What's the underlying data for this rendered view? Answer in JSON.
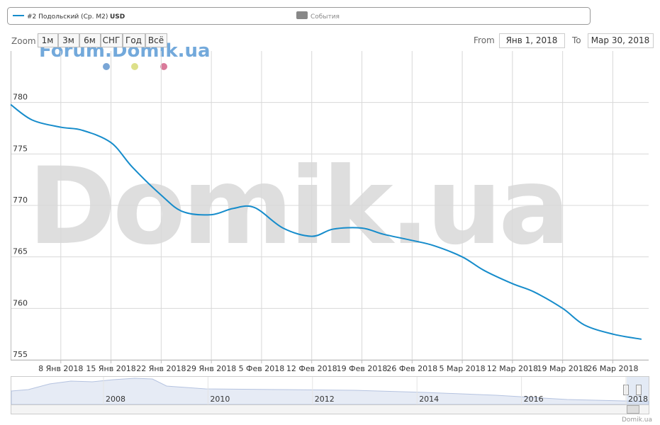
{
  "chart_data": {
    "type": "line",
    "x": [
      "2018-01-01",
      "2018-01-04",
      "2018-01-08",
      "2018-01-11",
      "2018-01-15",
      "2018-01-18",
      "2018-01-22",
      "2018-01-25",
      "2018-01-29",
      "2018-02-01",
      "2018-02-04",
      "2018-02-08",
      "2018-02-12",
      "2018-02-15",
      "2018-02-19",
      "2018-02-22",
      "2018-02-26",
      "2018-03-01",
      "2018-03-05",
      "2018-03-08",
      "2018-03-12",
      "2018-03-15",
      "2018-03-19",
      "2018-03-22",
      "2018-03-26",
      "2018-03-30"
    ],
    "series": [
      {
        "name": "#2 Подольский (Ср. M2)",
        "color": "#168ccb",
        "values": [
          779.8,
          778.3,
          777.6,
          777.3,
          776.1,
          773.7,
          771.0,
          769.4,
          769.1,
          769.7,
          769.8,
          767.8,
          767.0,
          767.7,
          767.8,
          767.2,
          766.6,
          766.1,
          765.0,
          763.7,
          762.4,
          761.6,
          760.0,
          758.4,
          757.5,
          757.0
        ]
      }
    ],
    "currency": "USD",
    "xlim": [
      "2018-01-01",
      "2018-03-31"
    ],
    "xticks": [
      {
        "value": "2018-01-08",
        "label": "8 Янв 2018"
      },
      {
        "value": "2018-01-15",
        "label": "15 Янв 2018"
      },
      {
        "value": "2018-01-22",
        "label": "22 Янв 2018"
      },
      {
        "value": "2018-01-29",
        "label": "29 Янв 2018"
      },
      {
        "value": "2018-02-05",
        "label": "5 Фев 2018"
      },
      {
        "value": "2018-02-12",
        "label": "12 Фев 2018"
      },
      {
        "value": "2018-02-19",
        "label": "19 Фев 2018"
      },
      {
        "value": "2018-02-26",
        "label": "26 Фев 2018"
      },
      {
        "value": "2018-03-05",
        "label": "5 Мар 2018"
      },
      {
        "value": "2018-03-12",
        "label": "12 Мар 2018"
      },
      {
        "value": "2018-03-19",
        "label": "19 Мар 2018"
      },
      {
        "value": "2018-03-26",
        "label": "26 Мар 2018"
      }
    ],
    "ylim": [
      755,
      785
    ],
    "yticks": [
      755,
      760,
      765,
      770,
      775,
      780
    ],
    "grid": true,
    "events_label": "События"
  },
  "ui": {
    "zoom_label": "Zoom",
    "zoom_buttons": [
      "1м",
      "3м",
      "6м",
      "СНГ",
      "Год",
      "Всё"
    ],
    "from_label": "From",
    "from_value": "Янв 1, 2018",
    "to_label": "To",
    "to_value": "Мар 30, 2018",
    "watermark_small": "Forum.Domik.ua",
    "watermark_big": "Domik.ua",
    "navigator_years": [
      "2008",
      "2010",
      "2012",
      "2014",
      "2016",
      "2018"
    ],
    "credit": "Domik.ua"
  }
}
